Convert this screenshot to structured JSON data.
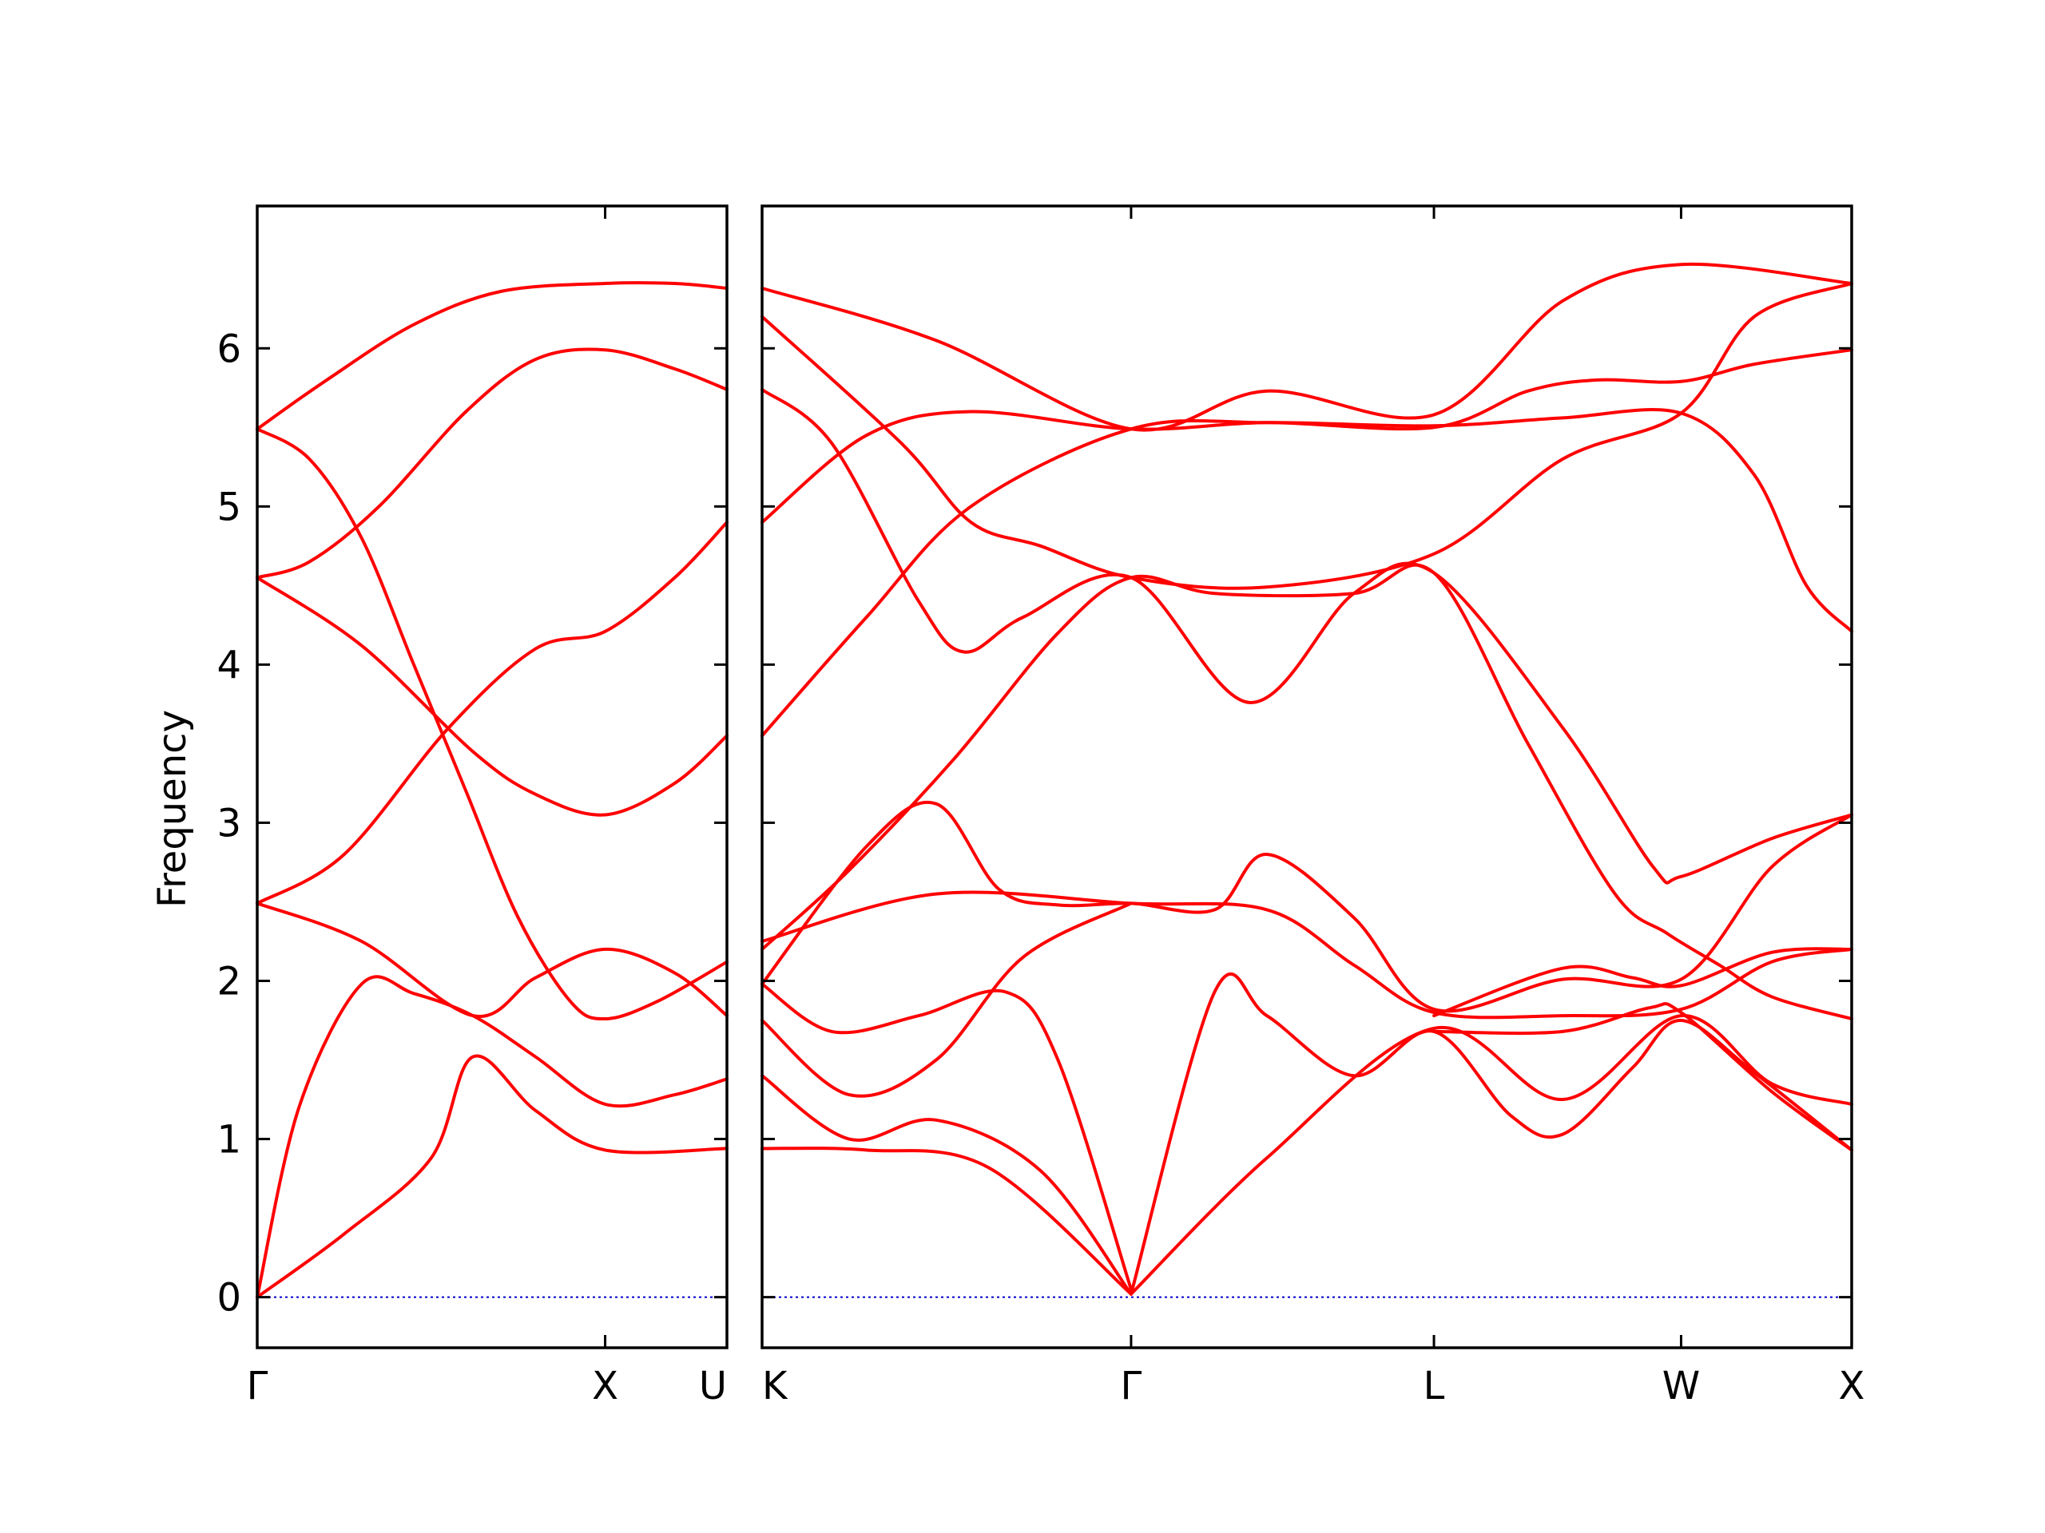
{
  "chart_data": {
    "type": "line",
    "title": "",
    "ylabel": "Frequency",
    "ylim": [
      -0.32,
      6.9
    ],
    "yticks": [
      0,
      1,
      2,
      3,
      4,
      5,
      6
    ],
    "grid": false,
    "legend": "none",
    "colors": {
      "bands": "#ff0000",
      "zero_line": "#0000cc"
    },
    "zero_line": 0,
    "panels": [
      {
        "name": "Γ-X-U",
        "xlim": [
          0,
          1.35
        ],
        "xticks": [
          {
            "x": 0,
            "label": "Γ"
          },
          {
            "x": 1.0,
            "label": "X"
          },
          {
            "x": 1.35,
            "label": "U"
          }
        ],
        "series": [
          {
            "points": [
              [
                0,
                0
              ],
              [
                0.25,
                0.4
              ],
              [
                0.5,
                0.88
              ],
              [
                0.62,
                1.52
              ],
              [
                0.8,
                1.18
              ],
              [
                1.0,
                0.93
              ],
              [
                1.35,
                0.94
              ]
            ]
          },
          {
            "points": [
              [
                0,
                0
              ],
              [
                0.12,
                1.2
              ],
              [
                0.3,
                1.98
              ],
              [
                0.45,
                1.92
              ],
              [
                0.62,
                1.78
              ],
              [
                0.8,
                1.52
              ],
              [
                1.0,
                1.22
              ],
              [
                1.2,
                1.28
              ],
              [
                1.35,
                1.38
              ]
            ]
          },
          {
            "points": [
              [
                0,
                2.49
              ],
              [
                0.3,
                2.25
              ],
              [
                0.62,
                1.78
              ],
              [
                0.8,
                2.02
              ],
              [
                1.0,
                2.2
              ],
              [
                1.2,
                2.05
              ],
              [
                1.35,
                1.78
              ]
            ]
          },
          {
            "points": [
              [
                0,
                2.49
              ],
              [
                0.25,
                2.8
              ],
              [
                0.55,
                3.6
              ],
              [
                0.8,
                4.1
              ],
              [
                1.0,
                4.21
              ],
              [
                1.2,
                4.55
              ],
              [
                1.35,
                4.9
              ]
            ]
          },
          {
            "points": [
              [
                0,
                4.55
              ],
              [
                0.3,
                4.12
              ],
              [
                0.62,
                3.45
              ],
              [
                0.8,
                3.18
              ],
              [
                1.0,
                3.05
              ],
              [
                1.2,
                3.25
              ],
              [
                1.35,
                3.55
              ]
            ]
          },
          {
            "points": [
              [
                0,
                4.55
              ],
              [
                0.15,
                4.65
              ],
              [
                0.35,
                5.0
              ],
              [
                0.6,
                5.6
              ],
              [
                0.8,
                5.93
              ],
              [
                1.0,
                5.99
              ],
              [
                1.2,
                5.87
              ],
              [
                1.35,
                5.74
              ]
            ]
          },
          {
            "points": [
              [
                0,
                5.49
              ],
              [
                0.2,
                5.8
              ],
              [
                0.45,
                6.15
              ],
              [
                0.7,
                6.36
              ],
              [
                1.0,
                6.41
              ],
              [
                1.2,
                6.41
              ],
              [
                1.35,
                6.38
              ]
            ]
          },
          {
            "points": [
              [
                0,
                5.49
              ],
              [
                0.15,
                5.3
              ],
              [
                0.3,
                4.8
              ],
              [
                0.45,
                4.0
              ],
              [
                0.6,
                3.2
              ],
              [
                0.75,
                2.4
              ],
              [
                0.9,
                1.87
              ],
              [
                1.0,
                1.76
              ],
              [
                1.15,
                1.87
              ],
              [
                1.35,
                2.12
              ]
            ]
          },
          {
            "points": [
              [
                0,
                0
              ],
              [
                1.35,
                0
              ]
            ],
            "is_zero_line": true
          }
        ]
      },
      {
        "name": "K-Γ-L-W-X",
        "xlim": [
          0,
          3.13
        ],
        "xticks": [
          {
            "x": 0,
            "label": "K"
          },
          {
            "x": 1.06,
            "label": "Γ"
          },
          {
            "x": 1.93,
            "label": "L"
          },
          {
            "x": 2.64,
            "label": "W"
          },
          {
            "x": 3.13,
            "label": "X"
          }
        ],
        "series": [
          {
            "points": [
              [
                0,
                6.38
              ],
              [
                0.5,
                6.05
              ],
              [
                1.06,
                5.49
              ],
              [
                1.45,
                5.73
              ],
              [
                1.93,
                5.58
              ],
              [
                2.3,
                6.3
              ],
              [
                2.64,
                6.53
              ],
              [
                3.13,
                6.41
              ]
            ]
          },
          {
            "points": [
              [
                0,
                6.2
              ],
              [
                0.4,
                5.4
              ],
              [
                0.6,
                4.9
              ],
              [
                0.8,
                4.75
              ],
              [
                1.06,
                4.55
              ],
              [
                1.45,
                4.49
              ],
              [
                1.93,
                4.7
              ],
              [
                2.3,
                5.3
              ],
              [
                2.64,
                5.59
              ],
              [
                2.85,
                6.2
              ],
              [
                3.13,
                6.41
              ]
            ]
          },
          {
            "points": [
              [
                0,
                5.74
              ],
              [
                0.2,
                5.4
              ],
              [
                0.45,
                4.4
              ],
              [
                0.58,
                4.08
              ],
              [
                0.75,
                4.3
              ],
              [
                1.06,
                4.55
              ],
              [
                1.4,
                3.76
              ],
              [
                1.7,
                4.45
              ],
              [
                1.93,
                4.58
              ],
              [
                2.3,
                3.6
              ],
              [
                2.56,
                2.72
              ],
              [
                2.64,
                2.66
              ],
              [
                2.9,
                2.9
              ],
              [
                3.13,
                3.05
              ]
            ]
          },
          {
            "points": [
              [
                0,
                4.9
              ],
              [
                0.3,
                5.45
              ],
              [
                0.6,
                5.6
              ],
              [
                1.06,
                5.49
              ],
              [
                1.45,
                5.53
              ],
              [
                1.93,
                5.51
              ],
              [
                2.3,
                5.56
              ],
              [
                2.64,
                5.59
              ],
              [
                2.85,
                5.2
              ],
              [
                3.0,
                4.5
              ],
              [
                3.13,
                4.21
              ]
            ]
          },
          {
            "points": [
              [
                0,
                3.55
              ],
              [
                0.3,
                4.3
              ],
              [
                0.6,
                5.0
              ],
              [
                1.06,
                5.49
              ],
              [
                1.45,
                5.53
              ],
              [
                1.93,
                5.5
              ],
              [
                2.2,
                5.73
              ],
              [
                2.4,
                5.8
              ],
              [
                2.64,
                5.79
              ],
              [
                2.85,
                5.9
              ],
              [
                3.13,
                5.99
              ]
            ]
          },
          {
            "points": [
              [
                0,
                2.2
              ],
              [
                0.25,
                2.7
              ],
              [
                0.55,
                3.4
              ],
              [
                0.85,
                4.2
              ],
              [
                1.06,
                4.55
              ],
              [
                1.3,
                4.45
              ],
              [
                1.7,
                4.45
              ],
              [
                1.93,
                4.58
              ],
              [
                2.2,
                3.5
              ],
              [
                2.45,
                2.55
              ],
              [
                2.6,
                2.3
              ],
              [
                2.75,
                2.1
              ],
              [
                2.9,
                1.9
              ],
              [
                3.13,
                1.76
              ]
            ]
          },
          {
            "points": [
              [
                0,
                1.98
              ],
              [
                0.3,
                2.85
              ],
              [
                0.5,
                3.12
              ],
              [
                0.68,
                2.58
              ],
              [
                0.85,
                2.48
              ],
              [
                1.06,
                2.49
              ],
              [
                1.3,
                2.45
              ],
              [
                1.45,
                2.8
              ],
              [
                1.7,
                2.4
              ],
              [
                1.93,
                1.82
              ],
              [
                2.3,
                2.01
              ],
              [
                2.64,
                2.01
              ],
              [
                2.9,
                2.72
              ],
              [
                3.13,
                3.05
              ]
            ]
          },
          {
            "points": [
              [
                0,
                2.25
              ],
              [
                0.5,
                2.55
              ],
              [
                1.06,
                2.49
              ],
              [
                1.45,
                2.45
              ],
              [
                1.7,
                2.1
              ],
              [
                1.93,
                1.8
              ],
              [
                2.3,
                1.78
              ],
              [
                2.64,
                1.82
              ],
              [
                2.9,
                2.12
              ],
              [
                3.13,
                2.2
              ]
            ]
          },
          {
            "points": [
              [
                0,
                1.98
              ],
              [
                0.2,
                1.68
              ],
              [
                0.45,
                1.78
              ],
              [
                0.7,
                1.93
              ],
              [
                0.85,
                1.5
              ],
              [
                1.06,
                0.05
              ]
            ]
          },
          {
            "points": [
              [
                0,
                1.75
              ],
              [
                0.25,
                1.28
              ],
              [
                0.5,
                1.5
              ],
              [
                0.75,
                2.15
              ],
              [
                1.06,
                2.49
              ]
            ]
          },
          {
            "points": [
              [
                0,
                1.4
              ],
              [
                0.25,
                1.0
              ],
              [
                0.5,
                1.12
              ],
              [
                0.8,
                0.8
              ],
              [
                1.06,
                0.02
              ]
            ]
          },
          {
            "points": [
              [
                0,
                0.94
              ],
              [
                0.3,
                0.93
              ],
              [
                0.65,
                0.82
              ],
              [
                1.06,
                0.02
              ]
            ]
          },
          {
            "points": [
              [
                1.06,
                0.02
              ],
              [
                1.3,
                1.93
              ],
              [
                1.45,
                1.78
              ],
              [
                1.7,
                1.4
              ],
              [
                1.93,
                1.68
              ],
              [
                2.15,
                1.15
              ],
              [
                2.3,
                1.03
              ],
              [
                2.5,
                1.45
              ],
              [
                2.64,
                1.75
              ],
              [
                2.85,
                1.42
              ],
              [
                3.13,
                0.93
              ]
            ]
          },
          {
            "points": [
              [
                1.06,
                0.02
              ],
              [
                1.45,
                0.88
              ],
              [
                1.93,
                1.7
              ],
              [
                2.3,
                1.25
              ],
              [
                2.64,
                1.78
              ],
              [
                2.9,
                1.35
              ],
              [
                3.13,
                1.22
              ]
            ]
          },
          {
            "points": [
              [
                1.93,
                1.78
              ],
              [
                2.3,
                2.08
              ],
              [
                2.5,
                2.02
              ],
              [
                2.64,
                1.97
              ],
              [
                2.9,
                2.18
              ],
              [
                3.13,
                2.2
              ]
            ]
          },
          {
            "points": [
              [
                1.93,
                1.68
              ],
              [
                2.3,
                1.68
              ],
              [
                2.55,
                1.83
              ],
              [
                2.64,
                1.8
              ],
              [
                2.9,
                1.3
              ],
              [
                3.13,
                0.93
              ]
            ]
          },
          {
            "points": [
              [
                0,
                0
              ],
              [
                3.13,
                0
              ]
            ],
            "is_zero_line": true
          }
        ]
      }
    ]
  }
}
